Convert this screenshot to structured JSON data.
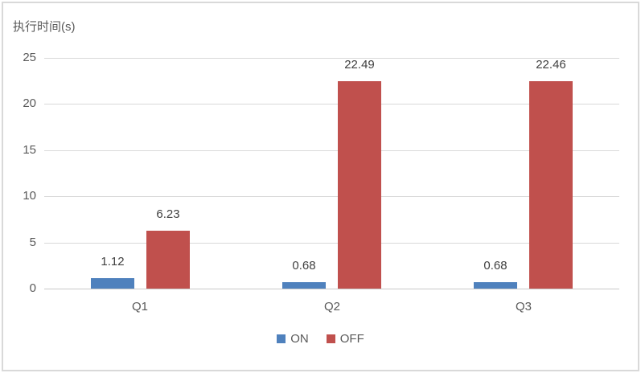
{
  "chart_data": {
    "type": "bar",
    "title": "执行时间(s)",
    "categories": [
      "Q1",
      "Q2",
      "Q3"
    ],
    "series": [
      {
        "name": "ON",
        "color": "#4F81BD",
        "values": [
          1.12,
          0.68,
          0.68
        ],
        "labels": [
          "1.12",
          "0.68",
          "0.68"
        ]
      },
      {
        "name": "OFF",
        "color": "#C0504D",
        "values": [
          6.23,
          22.49,
          22.46
        ],
        "labels": [
          "6.23",
          "22.49",
          "22.46"
        ]
      }
    ],
    "xlabel": "",
    "ylabel": "执行时间(s)",
    "ylim": [
      0,
      25
    ],
    "yticks": [
      "0",
      "5",
      "10",
      "15",
      "20",
      "25"
    ],
    "ytick_values": [
      0,
      5,
      10,
      15,
      20,
      25
    ],
    "grid": "horizontal",
    "legend_position": "bottom",
    "legend_labels": [
      "ON",
      "OFF"
    ]
  },
  "colors": {
    "background": "#FFFFFF",
    "frame_border": "#D9D9D9",
    "gridline": "#D9D9D9",
    "axis_line": "#C9C9C9",
    "tick_label": "#595959",
    "data_label": "#404040",
    "title": "#595959",
    "series_on": "#4F81BD",
    "series_off": "#C0504D"
  }
}
